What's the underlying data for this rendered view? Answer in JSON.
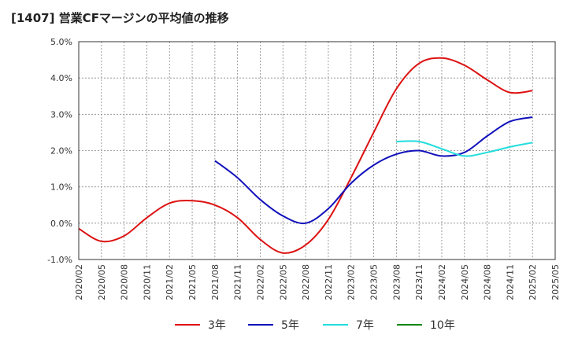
{
  "chart_data": {
    "type": "line",
    "title": "[1407]  営業CFマージンの平均値の推移",
    "x": [
      "2020/02",
      "2020/05",
      "2020/08",
      "2020/11",
      "2021/02",
      "2021/05",
      "2021/08",
      "2021/11",
      "2022/02",
      "2022/05",
      "2022/08",
      "2022/11",
      "2023/02",
      "2023/05",
      "2023/08",
      "2023/11",
      "2024/02",
      "2024/05",
      "2024/08",
      "2024/11",
      "2025/02",
      "2025/05"
    ],
    "ylim": [
      -1.0,
      5.0
    ],
    "yticks": [
      -1.0,
      0.0,
      1.0,
      2.0,
      3.0,
      4.0,
      5.0
    ],
    "ytick_labels": [
      "-1.0%",
      "0.0%",
      "1.0%",
      "2.0%",
      "3.0%",
      "4.0%",
      "5.0%"
    ],
    "grid": true,
    "legend_position": "bottom",
    "series": [
      {
        "name": "3年",
        "color": "#dd1111",
        "values": [
          -0.15,
          -0.5,
          -0.35,
          0.15,
          0.55,
          0.62,
          0.5,
          0.15,
          -0.45,
          -0.82,
          -0.6,
          0.1,
          1.25,
          2.5,
          3.7,
          4.4,
          4.55,
          4.35,
          3.95,
          3.6,
          3.65,
          null
        ]
      },
      {
        "name": "5年",
        "color": "#1111bb",
        "values": [
          null,
          null,
          null,
          null,
          null,
          null,
          1.72,
          1.25,
          0.65,
          0.2,
          0.0,
          0.4,
          1.1,
          1.6,
          1.9,
          2.0,
          1.85,
          1.95,
          2.4,
          2.8,
          2.92,
          null
        ]
      },
      {
        "name": "7年",
        "color": "#22dddd",
        "values": [
          null,
          null,
          null,
          null,
          null,
          null,
          null,
          null,
          null,
          null,
          null,
          null,
          null,
          null,
          2.25,
          2.25,
          2.05,
          1.85,
          1.95,
          2.1,
          2.22,
          null
        ]
      },
      {
        "name": "10年",
        "color": "#118811",
        "values": [
          null,
          null,
          null,
          null,
          null,
          null,
          null,
          null,
          null,
          null,
          null,
          null,
          null,
          null,
          null,
          null,
          null,
          null,
          null,
          null,
          null,
          null
        ]
      }
    ]
  }
}
